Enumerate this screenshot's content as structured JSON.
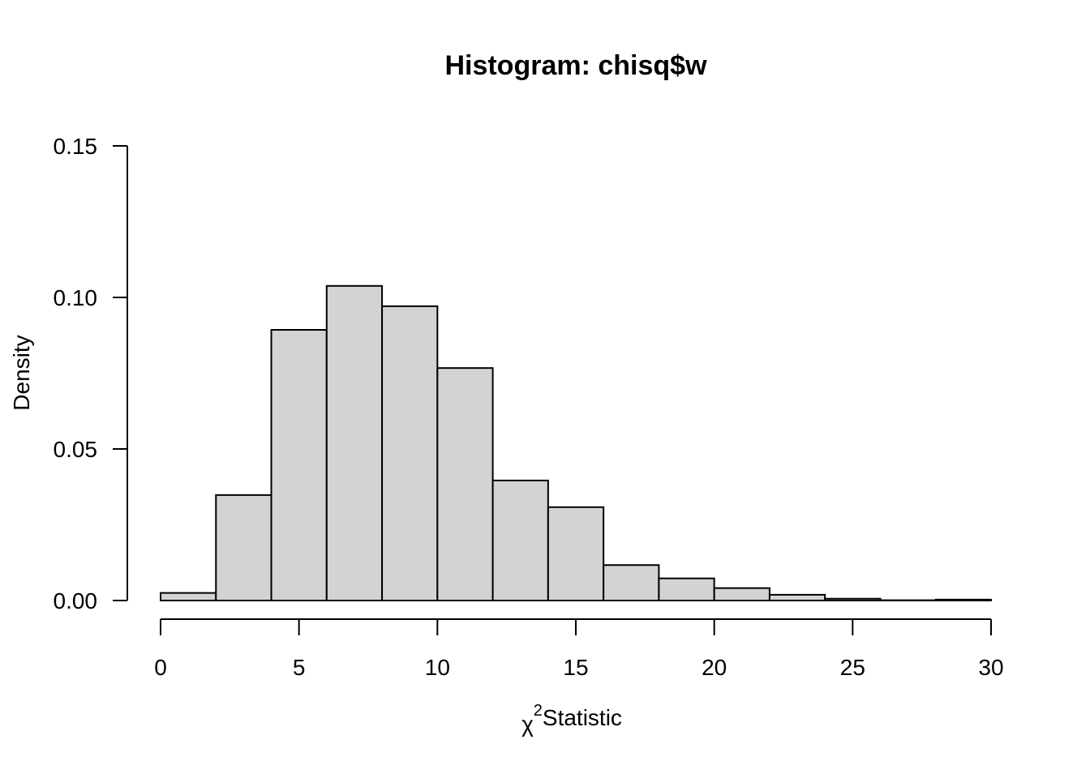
{
  "chart_data": {
    "type": "bar",
    "title": "Histogram: chisq$w",
    "xlabel_symbol": "χ",
    "xlabel_superscript": "2",
    "xlabel_text": "Statistic",
    "ylabel": "Density",
    "bin_edges": [
      0,
      2,
      4,
      6,
      8,
      10,
      12,
      14,
      16,
      18,
      20,
      22,
      24,
      26,
      28,
      30
    ],
    "values": [
      0.0025,
      0.0348,
      0.0893,
      0.1038,
      0.0971,
      0.0767,
      0.0396,
      0.0308,
      0.0117,
      0.0073,
      0.0041,
      0.0019,
      0.0006,
      0.0001,
      0.0003
    ],
    "xlim": [
      0,
      30
    ],
    "ylim": [
      0,
      0.15
    ],
    "xticks": [
      0,
      5,
      10,
      15,
      20,
      25,
      30
    ],
    "xtick_labels": [
      "0",
      "5",
      "10",
      "15",
      "20",
      "25",
      "30"
    ],
    "yticks": [
      0,
      0.05,
      0.1,
      0.15
    ],
    "ytick_labels": [
      "0.00",
      "0.05",
      "0.10",
      "0.15"
    ],
    "grid": false,
    "bar_color": "#d3d3d3",
    "edge_color": "#000000"
  }
}
